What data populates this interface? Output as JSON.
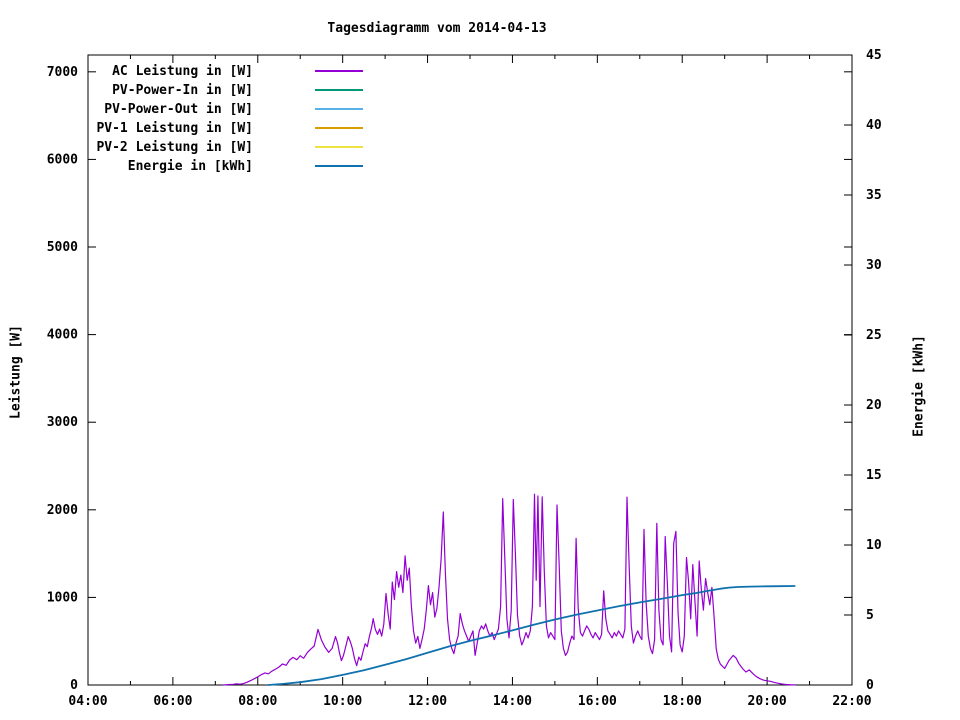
{
  "title": "Tagesdiagramm vom 2014-04-13",
  "axes": {
    "x": {
      "range_hours": [
        4,
        22
      ],
      "major_hours": [
        4,
        6,
        8,
        10,
        12,
        14,
        16,
        18,
        20,
        22
      ],
      "major_labels": [
        "04:00",
        "06:00",
        "08:00",
        "10:00",
        "12:00",
        "14:00",
        "16:00",
        "18:00",
        "20:00",
        "22:00"
      ],
      "minor_hours": [
        5,
        7,
        9,
        11,
        13,
        15,
        17,
        19,
        21
      ]
    },
    "y_left": {
      "label": "Leistung [W]",
      "range": [
        0,
        7192
      ],
      "ticks": [
        0,
        1000,
        2000,
        3000,
        4000,
        5000,
        6000,
        7000
      ],
      "mirror_ticks_on_right_border": true
    },
    "y_right": {
      "label": "Energie [kWh]",
      "range": [
        0,
        45
      ],
      "ticks": [
        0,
        5,
        10,
        15,
        20,
        25,
        30,
        35,
        40,
        45
      ]
    }
  },
  "legend": [
    {
      "label": "AC Leistung in [W]",
      "color": "#9400D3"
    },
    {
      "label": "PV-Power-In in [W]",
      "color": "#009878"
    },
    {
      "label": "PV-Power-Out in [W]",
      "color": "#57B2E8"
    },
    {
      "label": "PV-1 Leistung in [W]",
      "color": "#D89E00"
    },
    {
      "label": "PV-2 Leistung in [W]",
      "color": "#EDE33E"
    },
    {
      "label": "Energie in [kWh]",
      "color": "#0F72AE"
    }
  ],
  "chart_data": {
    "type": "line",
    "title": "Tagesdiagramm vom 2014-04-13",
    "xlabel": "",
    "x_unit": "hour_of_day",
    "xlim_hours": [
      4,
      22
    ],
    "x_tick_labels": [
      "04:00",
      "06:00",
      "08:00",
      "10:00",
      "12:00",
      "14:00",
      "16:00",
      "18:00",
      "20:00",
      "22:00"
    ],
    "ylabel_left": "Leistung [W]",
    "ylim_left": [
      0,
      7192
    ],
    "ylabel_right": "Energie [kWh]",
    "ylim_right": [
      0,
      45
    ],
    "grid": false,
    "legend_position": "top-left-inside",
    "series": [
      {
        "name": "AC Leistung in [W]",
        "axis": "left",
        "color": "#9400D3",
        "width": 1.2,
        "points_hour_value": [
          [
            7.18,
            0
          ],
          [
            7.3,
            4
          ],
          [
            7.42,
            8
          ],
          [
            7.5,
            12
          ],
          [
            7.58,
            9
          ],
          [
            7.67,
            18
          ],
          [
            7.75,
            32
          ],
          [
            7.83,
            50
          ],
          [
            7.92,
            72
          ],
          [
            8.0,
            92
          ],
          [
            8.08,
            118
          ],
          [
            8.17,
            138
          ],
          [
            8.25,
            128
          ],
          [
            8.33,
            158
          ],
          [
            8.42,
            182
          ],
          [
            8.5,
            205
          ],
          [
            8.58,
            240
          ],
          [
            8.67,
            225
          ],
          [
            8.75,
            285
          ],
          [
            8.83,
            315
          ],
          [
            8.92,
            288
          ],
          [
            9.0,
            335
          ],
          [
            9.08,
            305
          ],
          [
            9.17,
            372
          ],
          [
            9.25,
            410
          ],
          [
            9.33,
            445
          ],
          [
            9.42,
            635
          ],
          [
            9.5,
            515
          ],
          [
            9.58,
            435
          ],
          [
            9.67,
            372
          ],
          [
            9.75,
            418
          ],
          [
            9.83,
            552
          ],
          [
            9.88,
            478
          ],
          [
            9.92,
            375
          ],
          [
            9.97,
            278
          ],
          [
            10.02,
            338
          ],
          [
            10.08,
            455
          ],
          [
            10.13,
            552
          ],
          [
            10.18,
            495
          ],
          [
            10.23,
            415
          ],
          [
            10.28,
            298
          ],
          [
            10.33,
            222
          ],
          [
            10.38,
            318
          ],
          [
            10.43,
            282
          ],
          [
            10.48,
            378
          ],
          [
            10.53,
            472
          ],
          [
            10.58,
            438
          ],
          [
            10.63,
            555
          ],
          [
            10.68,
            648
          ],
          [
            10.72,
            758
          ],
          [
            10.77,
            635
          ],
          [
            10.82,
            578
          ],
          [
            10.87,
            638
          ],
          [
            10.92,
            558
          ],
          [
            10.97,
            695
          ],
          [
            11.02,
            1045
          ],
          [
            11.07,
            815
          ],
          [
            11.12,
            638
          ],
          [
            11.17,
            1175
          ],
          [
            11.22,
            975
          ],
          [
            11.27,
            1295
          ],
          [
            11.32,
            1115
          ],
          [
            11.37,
            1255
          ],
          [
            11.42,
            1055
          ],
          [
            11.47,
            1475
          ],
          [
            11.52,
            1195
          ],
          [
            11.57,
            1335
          ],
          [
            11.62,
            895
          ],
          [
            11.67,
            618
          ],
          [
            11.72,
            478
          ],
          [
            11.77,
            555
          ],
          [
            11.82,
            418
          ],
          [
            11.87,
            518
          ],
          [
            11.92,
            638
          ],
          [
            11.97,
            855
          ],
          [
            12.02,
            1135
          ],
          [
            12.07,
            915
          ],
          [
            12.12,
            1055
          ],
          [
            12.17,
            775
          ],
          [
            12.22,
            875
          ],
          [
            12.27,
            1115
          ],
          [
            12.32,
            1435
          ],
          [
            12.37,
            1975
          ],
          [
            12.42,
            1275
          ],
          [
            12.47,
            755
          ],
          [
            12.52,
            518
          ],
          [
            12.57,
            418
          ],
          [
            12.62,
            358
          ],
          [
            12.67,
            478
          ],
          [
            12.72,
            558
          ],
          [
            12.77,
            815
          ],
          [
            12.82,
            695
          ],
          [
            12.87,
            618
          ],
          [
            12.92,
            558
          ],
          [
            12.97,
            498
          ],
          [
            13.02,
            558
          ],
          [
            13.07,
            618
          ],
          [
            13.12,
            338
          ],
          [
            13.17,
            478
          ],
          [
            13.22,
            618
          ],
          [
            13.27,
            675
          ],
          [
            13.32,
            638
          ],
          [
            13.37,
            698
          ],
          [
            13.42,
            618
          ],
          [
            13.47,
            558
          ],
          [
            13.52,
            598
          ],
          [
            13.57,
            518
          ],
          [
            13.62,
            578
          ],
          [
            13.67,
            638
          ],
          [
            13.72,
            895
          ],
          [
            13.77,
            2128
          ],
          [
            13.82,
            1448
          ],
          [
            13.87,
            755
          ],
          [
            13.92,
            538
          ],
          [
            13.97,
            848
          ],
          [
            14.02,
            2118
          ],
          [
            14.07,
            1495
          ],
          [
            14.12,
            795
          ],
          [
            14.17,
            558
          ],
          [
            14.22,
            458
          ],
          [
            14.27,
            518
          ],
          [
            14.32,
            598
          ],
          [
            14.37,
            538
          ],
          [
            14.42,
            618
          ],
          [
            14.47,
            895
          ],
          [
            14.52,
            2178
          ],
          [
            14.56,
            1195
          ],
          [
            14.6,
            2158
          ],
          [
            14.65,
            895
          ],
          [
            14.7,
            2148
          ],
          [
            14.75,
            1295
          ],
          [
            14.8,
            675
          ],
          [
            14.85,
            538
          ],
          [
            14.9,
            598
          ],
          [
            14.95,
            558
          ],
          [
            15.0,
            518
          ],
          [
            15.05,
            2055
          ],
          [
            15.1,
            1395
          ],
          [
            15.15,
            618
          ],
          [
            15.2,
            418
          ],
          [
            15.25,
            338
          ],
          [
            15.3,
            378
          ],
          [
            15.35,
            478
          ],
          [
            15.4,
            558
          ],
          [
            15.45,
            518
          ],
          [
            15.5,
            1675
          ],
          [
            15.55,
            875
          ],
          [
            15.6,
            598
          ],
          [
            15.65,
            558
          ],
          [
            15.7,
            618
          ],
          [
            15.75,
            675
          ],
          [
            15.8,
            638
          ],
          [
            15.85,
            578
          ],
          [
            15.9,
            538
          ],
          [
            15.95,
            598
          ],
          [
            16.0,
            558
          ],
          [
            16.05,
            518
          ],
          [
            16.1,
            578
          ],
          [
            16.15,
            1075
          ],
          [
            16.2,
            755
          ],
          [
            16.25,
            618
          ],
          [
            16.3,
            578
          ],
          [
            16.35,
            538
          ],
          [
            16.4,
            598
          ],
          [
            16.45,
            558
          ],
          [
            16.5,
            618
          ],
          [
            16.55,
            578
          ],
          [
            16.6,
            538
          ],
          [
            16.65,
            638
          ],
          [
            16.7,
            2145
          ],
          [
            16.75,
            1345
          ],
          [
            16.8,
            675
          ],
          [
            16.85,
            478
          ],
          [
            16.9,
            558
          ],
          [
            16.95,
            618
          ],
          [
            17.0,
            558
          ],
          [
            17.05,
            518
          ],
          [
            17.1,
            1775
          ],
          [
            17.15,
            945
          ],
          [
            17.2,
            558
          ],
          [
            17.25,
            418
          ],
          [
            17.3,
            358
          ],
          [
            17.35,
            518
          ],
          [
            17.4,
            1845
          ],
          [
            17.45,
            855
          ],
          [
            17.5,
            518
          ],
          [
            17.55,
            458
          ],
          [
            17.6,
            1695
          ],
          [
            17.65,
            1145
          ],
          [
            17.7,
            558
          ],
          [
            17.75,
            378
          ],
          [
            17.8,
            1618
          ],
          [
            17.85,
            1755
          ],
          [
            17.9,
            835
          ],
          [
            17.95,
            458
          ],
          [
            18.0,
            378
          ],
          [
            18.05,
            558
          ],
          [
            18.1,
            1455
          ],
          [
            18.15,
            1175
          ],
          [
            18.2,
            755
          ],
          [
            18.25,
            1375
          ],
          [
            18.3,
            945
          ],
          [
            18.35,
            558
          ],
          [
            18.4,
            1415
          ],
          [
            18.45,
            1095
          ],
          [
            18.5,
            855
          ],
          [
            18.55,
            1215
          ],
          [
            18.6,
            1055
          ],
          [
            18.65,
            915
          ],
          [
            18.7,
            1115
          ],
          [
            18.75,
            775
          ],
          [
            18.8,
            415
          ],
          [
            18.85,
            295
          ],
          [
            18.9,
            238
          ],
          [
            19.0,
            188
          ],
          [
            19.1,
            278
          ],
          [
            19.2,
            338
          ],
          [
            19.27,
            308
          ],
          [
            19.33,
            248
          ],
          [
            19.42,
            188
          ],
          [
            19.5,
            148
          ],
          [
            19.58,
            172
          ],
          [
            19.67,
            128
          ],
          [
            19.75,
            95
          ],
          [
            19.83,
            72
          ],
          [
            19.92,
            55
          ],
          [
            20.0,
            48
          ],
          [
            20.08,
            42
          ],
          [
            20.17,
            30
          ],
          [
            20.25,
            20
          ],
          [
            20.33,
            12
          ],
          [
            20.42,
            7
          ],
          [
            20.5,
            4
          ],
          [
            20.58,
            2
          ],
          [
            20.67,
            1
          ]
        ]
      },
      {
        "name": "PV-Power-In in [W]",
        "axis": "left",
        "color": "#009878",
        "width": 1.2,
        "points_hour_value": [],
        "visible_curve": false
      },
      {
        "name": "PV-Power-Out in [W]",
        "axis": "left",
        "color": "#57B2E8",
        "width": 1.2,
        "points_hour_value": [],
        "visible_curve": false
      },
      {
        "name": "PV-1 Leistung in [W]",
        "axis": "left",
        "color": "#D89E00",
        "width": 1.2,
        "points_hour_value": [],
        "visible_curve": false
      },
      {
        "name": "PV-2 Leistung in [W]",
        "axis": "left",
        "color": "#EDE33E",
        "width": 1.2,
        "points_hour_value": [],
        "visible_curve": false
      },
      {
        "name": "Energie in [kWh]",
        "axis": "right",
        "color": "#0F72AE",
        "width": 1.8,
        "points_hour_value": [
          [
            8.25,
            0
          ],
          [
            8.6,
            0.08
          ],
          [
            9.0,
            0.2
          ],
          [
            9.5,
            0.42
          ],
          [
            10.0,
            0.72
          ],
          [
            10.5,
            1.05
          ],
          [
            11.0,
            1.45
          ],
          [
            11.5,
            1.85
          ],
          [
            12.0,
            2.3
          ],
          [
            12.5,
            2.75
          ],
          [
            13.0,
            3.15
          ],
          [
            13.5,
            3.52
          ],
          [
            14.0,
            3.9
          ],
          [
            14.5,
            4.3
          ],
          [
            15.0,
            4.68
          ],
          [
            15.5,
            5.02
          ],
          [
            16.0,
            5.32
          ],
          [
            16.5,
            5.62
          ],
          [
            17.0,
            5.9
          ],
          [
            17.5,
            6.15
          ],
          [
            18.0,
            6.42
          ],
          [
            18.3,
            6.56
          ],
          [
            18.6,
            6.72
          ],
          [
            18.9,
            6.88
          ],
          [
            19.1,
            6.96
          ],
          [
            19.3,
            7.0
          ],
          [
            19.6,
            7.03
          ],
          [
            20.0,
            7.05
          ],
          [
            20.3,
            7.06
          ],
          [
            20.65,
            7.07
          ]
        ]
      }
    ]
  }
}
